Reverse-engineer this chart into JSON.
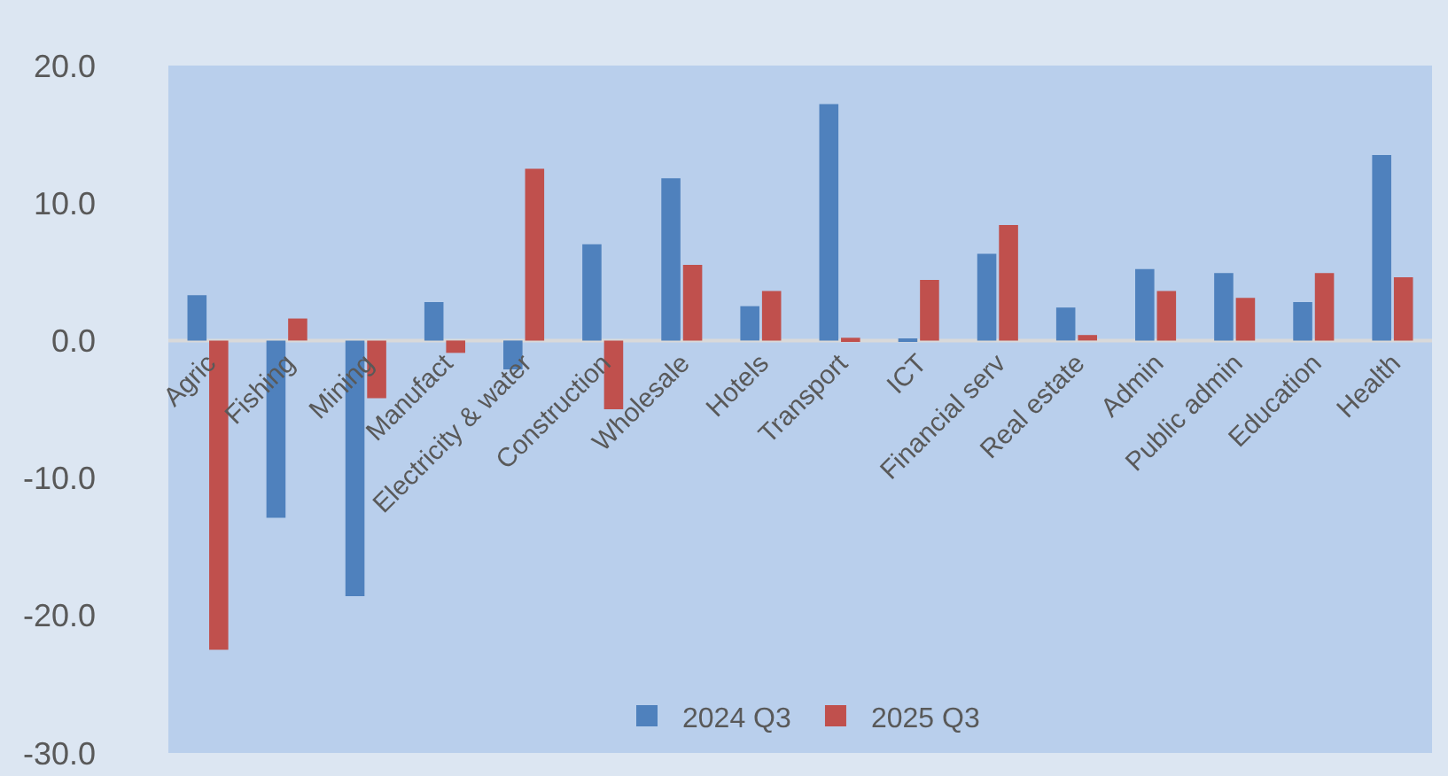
{
  "chart_data": {
    "type": "bar",
    "categories": [
      "Agric",
      "Fishing",
      "Mining",
      "Manufact",
      "Electricity & water",
      "Construction",
      "Wholesale",
      "Hotels",
      "Transport",
      "ICT",
      "Financial serv",
      "Real estate",
      "Admin",
      "Public admin",
      "Education",
      "Health"
    ],
    "series": [
      {
        "name": "2024 Q3",
        "color": "#4f81bd",
        "values": [
          3.3,
          -12.9,
          -18.6,
          2.8,
          -2.1,
          7.0,
          11.8,
          2.5,
          17.2,
          0.1,
          6.3,
          2.4,
          5.2,
          4.9,
          2.8,
          13.5
        ]
      },
      {
        "name": "2025 Q3",
        "color": "#c0504d",
        "values": [
          -22.5,
          1.6,
          -4.2,
          -0.9,
          12.5,
          -5.0,
          5.5,
          3.6,
          0.2,
          4.4,
          8.4,
          0.4,
          3.6,
          3.1,
          4.9,
          4.6
        ]
      }
    ],
    "ylim": [
      -30,
      20
    ],
    "yticks": [
      {
        "value": -30,
        "label": "-30.0"
      },
      {
        "value": -20,
        "label": "-20.0"
      },
      {
        "value": -10,
        "label": "-10.0"
      },
      {
        "value": 0,
        "label": "0.0"
      },
      {
        "value": 10,
        "label": "10.0"
      },
      {
        "value": 20,
        "label": "20.0"
      }
    ],
    "grid": false,
    "legend": "bottom"
  }
}
